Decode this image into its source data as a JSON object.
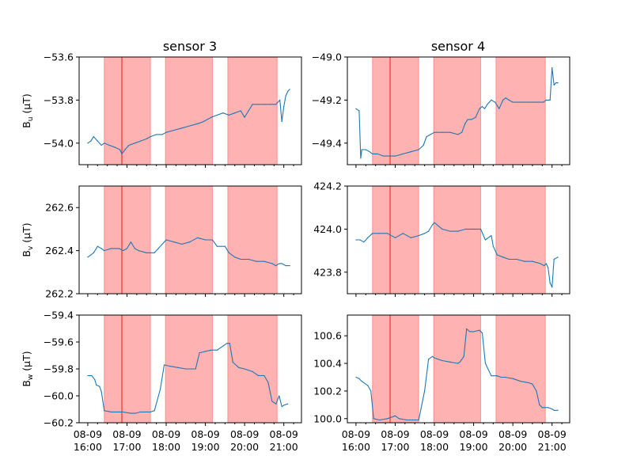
{
  "figure": {
    "columns": [
      {
        "title": "sensor 3"
      },
      {
        "title": "sensor 4"
      }
    ],
    "row_labels": [
      {
        "base": "B",
        "sub": "u",
        "unit": " (μT)"
      },
      {
        "base": "B",
        "sub": "v",
        "unit": " (μT)"
      },
      {
        "base": "B",
        "sub": "w",
        "unit": " (μT)"
      }
    ],
    "x_tick_labels": [
      {
        "t": 16.0,
        "line1": "08-09",
        "line2": "16:00"
      },
      {
        "t": 17.0,
        "line1": "08-09",
        "line2": "17:00"
      },
      {
        "t": 18.0,
        "line1": "08-09",
        "line2": "18:00"
      },
      {
        "t": 19.0,
        "line1": "08-09",
        "line2": "19:00"
      },
      {
        "t": 20.0,
        "line1": "08-09",
        "line2": "20:00"
      },
      {
        "t": 21.0,
        "line1": "08-09",
        "line2": "21:00"
      }
    ],
    "colors": {
      "series": "#1f77b4",
      "shade": "#ff0000",
      "marker_line": "#ff0000"
    }
  },
  "chart_data": [
    {
      "type": "line",
      "column": 0,
      "row": 0,
      "title": "sensor 3",
      "ylabel": "B_u (μT)",
      "xlim": [
        15.78,
        21.45
      ],
      "ylim": [
        -54.1,
        -53.6
      ],
      "yticks": [
        {
          "v": -54.0,
          "label": "−54.0"
        },
        {
          "v": -53.8,
          "label": "−53.8"
        },
        {
          "v": -53.6,
          "label": "−53.6"
        }
      ],
      "x_unit": "hours (08-09)",
      "shaded_intervals": [
        [
          16.42,
          17.6
        ],
        [
          17.98,
          19.18
        ],
        [
          19.57,
          20.83
        ]
      ],
      "marker_line": 16.87,
      "series": [
        {
          "x": [
            16.0,
            16.08,
            16.15,
            16.25,
            16.35,
            16.42,
            16.55,
            16.7,
            16.82,
            16.87,
            16.95,
            17.05,
            17.2,
            17.35,
            17.5,
            17.6,
            17.75,
            17.9,
            18.0,
            18.2,
            18.4,
            18.6,
            18.8,
            18.95,
            19.05,
            19.15,
            19.3,
            19.45,
            19.6,
            19.75,
            19.9,
            20.0,
            20.1,
            20.2,
            20.35,
            20.5,
            20.65,
            20.8,
            20.9,
            20.95,
            21.0,
            21.05,
            21.1,
            21.15
          ],
          "y": [
            -54.0,
            -53.99,
            -53.97,
            -53.99,
            -54.01,
            -54.0,
            -54.01,
            -54.02,
            -54.03,
            -54.05,
            -54.03,
            -54.01,
            -54.0,
            -53.99,
            -53.98,
            -53.97,
            -53.96,
            -53.96,
            -53.95,
            -53.94,
            -53.93,
            -53.92,
            -53.91,
            -53.9,
            -53.89,
            -53.88,
            -53.87,
            -53.86,
            -53.87,
            -53.86,
            -53.85,
            -53.88,
            -53.85,
            -53.82,
            -53.82,
            -53.82,
            -53.82,
            -53.82,
            -53.8,
            -53.9,
            -53.83,
            -53.78,
            -53.76,
            -53.75
          ]
        }
      ]
    },
    {
      "type": "line",
      "column": 1,
      "row": 0,
      "title": "sensor 4",
      "ylabel": "",
      "xlim": [
        15.78,
        21.45
      ],
      "ylim": [
        -49.5,
        -49.0
      ],
      "yticks": [
        {
          "v": -49.4,
          "label": "−49.4"
        },
        {
          "v": -49.2,
          "label": "−49.2"
        },
        {
          "v": -49.0,
          "label": "−49.0"
        }
      ],
      "x_unit": "hours (08-09)",
      "shaded_intervals": [
        [
          16.42,
          17.6
        ],
        [
          17.98,
          19.18
        ],
        [
          19.57,
          20.83
        ]
      ],
      "marker_line": 16.87,
      "series": [
        {
          "x": [
            16.0,
            16.08,
            16.12,
            16.15,
            16.25,
            16.35,
            16.42,
            16.55,
            16.7,
            16.87,
            17.0,
            17.2,
            17.4,
            17.6,
            17.72,
            17.8,
            17.9,
            18.0,
            18.2,
            18.4,
            18.6,
            18.7,
            18.78,
            18.85,
            18.95,
            19.05,
            19.15,
            19.22,
            19.28,
            19.35,
            19.45,
            19.55,
            19.65,
            19.75,
            19.82,
            19.9,
            20.0,
            20.2,
            20.4,
            20.6,
            20.78,
            20.85,
            20.95,
            21.0,
            21.05,
            21.1,
            21.15
          ],
          "y": [
            -49.24,
            -49.25,
            -49.47,
            -49.43,
            -49.43,
            -49.44,
            -49.45,
            -49.45,
            -49.46,
            -49.46,
            -49.46,
            -49.45,
            -49.44,
            -49.43,
            -49.41,
            -49.37,
            -49.36,
            -49.35,
            -49.35,
            -49.35,
            -49.36,
            -49.35,
            -49.31,
            -49.29,
            -49.29,
            -49.28,
            -49.24,
            -49.23,
            -49.24,
            -49.22,
            -49.2,
            -49.21,
            -49.24,
            -49.2,
            -49.19,
            -49.2,
            -49.21,
            -49.21,
            -49.21,
            -49.21,
            -49.21,
            -49.2,
            -49.2,
            -49.05,
            -49.13,
            -49.12,
            -49.12
          ]
        }
      ]
    },
    {
      "type": "line",
      "column": 0,
      "row": 1,
      "title": "",
      "ylabel": "B_v (μT)",
      "xlim": [
        15.78,
        21.45
      ],
      "ylim": [
        262.2,
        262.7
      ],
      "yticks": [
        {
          "v": 262.2,
          "label": "262.2"
        },
        {
          "v": 262.4,
          "label": "262.4"
        },
        {
          "v": 262.6,
          "label": "262.6"
        }
      ],
      "x_unit": "hours (08-09)",
      "shaded_intervals": [
        [
          16.42,
          17.6
        ],
        [
          17.98,
          19.18
        ],
        [
          19.57,
          20.83
        ]
      ],
      "marker_line": 16.87,
      "series": [
        {
          "x": [
            16.0,
            16.08,
            16.15,
            16.25,
            16.35,
            16.42,
            16.6,
            16.8,
            16.9,
            17.0,
            17.1,
            17.2,
            17.3,
            17.5,
            17.6,
            17.7,
            17.8,
            17.9,
            18.0,
            18.2,
            18.4,
            18.6,
            18.8,
            19.0,
            19.18,
            19.3,
            19.5,
            19.6,
            19.75,
            19.9,
            20.1,
            20.3,
            20.5,
            20.7,
            20.8,
            20.88,
            20.95,
            21.05,
            21.15
          ],
          "y": [
            262.37,
            262.38,
            262.39,
            262.42,
            262.41,
            262.4,
            262.41,
            262.41,
            262.4,
            262.41,
            262.44,
            262.41,
            262.4,
            262.39,
            262.39,
            262.39,
            262.41,
            262.43,
            262.45,
            262.44,
            262.43,
            262.44,
            262.46,
            262.45,
            262.45,
            262.42,
            262.42,
            262.39,
            262.37,
            262.36,
            262.36,
            262.35,
            262.35,
            262.34,
            262.33,
            262.34,
            262.34,
            262.33,
            262.33
          ]
        }
      ]
    },
    {
      "type": "line",
      "column": 1,
      "row": 1,
      "title": "",
      "ylabel": "",
      "xlim": [
        15.78,
        21.45
      ],
      "ylim": [
        423.7,
        424.2
      ],
      "yticks": [
        {
          "v": 423.8,
          "label": "423.8"
        },
        {
          "v": 424.0,
          "label": "424.0"
        },
        {
          "v": 424.2,
          "label": "424.2"
        }
      ],
      "x_unit": "hours (08-09)",
      "shaded_intervals": [
        [
          16.42,
          17.6
        ],
        [
          17.98,
          19.18
        ],
        [
          19.57,
          20.83
        ]
      ],
      "marker_line": 16.87,
      "series": [
        {
          "x": [
            16.0,
            16.1,
            16.2,
            16.3,
            16.42,
            16.6,
            16.8,
            17.0,
            17.2,
            17.4,
            17.6,
            17.75,
            17.85,
            17.95,
            18.0,
            18.2,
            18.4,
            18.6,
            18.8,
            19.0,
            19.18,
            19.3,
            19.45,
            19.5,
            19.6,
            19.75,
            19.9,
            20.1,
            20.3,
            20.5,
            20.7,
            20.8,
            20.85,
            20.9,
            20.95,
            21.0,
            21.05,
            21.15
          ],
          "y": [
            423.95,
            423.95,
            423.94,
            423.96,
            423.98,
            423.98,
            423.98,
            423.96,
            423.98,
            423.96,
            423.97,
            423.98,
            423.99,
            424.02,
            424.03,
            424.0,
            423.99,
            423.99,
            424.0,
            424.0,
            424.0,
            423.95,
            423.97,
            423.92,
            423.88,
            423.87,
            423.86,
            423.86,
            423.85,
            423.85,
            423.84,
            423.83,
            423.84,
            423.82,
            423.75,
            423.73,
            423.86,
            423.87
          ]
        }
      ]
    },
    {
      "type": "line",
      "column": 0,
      "row": 2,
      "title": "",
      "ylabel": "B_w (μT)",
      "xlim": [
        15.78,
        21.45
      ],
      "ylim": [
        -60.2,
        -59.4
      ],
      "yticks": [
        {
          "v": -60.2,
          "label": "−60.2"
        },
        {
          "v": -60.0,
          "label": "−60.0"
        },
        {
          "v": -59.8,
          "label": "−59.8"
        },
        {
          "v": -59.6,
          "label": "−59.6"
        },
        {
          "v": -59.4,
          "label": "−59.4"
        }
      ],
      "x_unit": "hours (08-09)",
      "shaded_intervals": [
        [
          16.42,
          17.6
        ],
        [
          17.98,
          19.18
        ],
        [
          19.57,
          20.83
        ]
      ],
      "marker_line": 16.87,
      "series": [
        {
          "x": [
            16.0,
            16.1,
            16.18,
            16.22,
            16.3,
            16.35,
            16.42,
            16.6,
            16.8,
            16.9,
            17.1,
            17.2,
            17.35,
            17.5,
            17.6,
            17.7,
            17.85,
            17.95,
            18.1,
            18.3,
            18.5,
            18.65,
            18.75,
            18.85,
            19.0,
            19.15,
            19.3,
            19.45,
            19.55,
            19.62,
            19.7,
            19.85,
            20.0,
            20.2,
            20.35,
            20.5,
            20.6,
            20.7,
            20.8,
            20.88,
            20.95,
            21.0,
            21.1
          ],
          "y": [
            -59.85,
            -59.85,
            -59.88,
            -59.92,
            -59.93,
            -59.97,
            -60.11,
            -60.12,
            -60.12,
            -60.12,
            -60.13,
            -60.13,
            -60.12,
            -60.12,
            -60.12,
            -60.11,
            -59.95,
            -59.77,
            -59.78,
            -59.79,
            -59.8,
            -59.8,
            -59.8,
            -59.68,
            -59.67,
            -59.66,
            -59.66,
            -59.63,
            -59.61,
            -59.61,
            -59.75,
            -59.79,
            -59.8,
            -59.82,
            -59.85,
            -59.85,
            -59.9,
            -60.04,
            -60.06,
            -60.0,
            -60.08,
            -60.07,
            -60.06
          ]
        }
      ]
    },
    {
      "type": "line",
      "column": 1,
      "row": 2,
      "title": "",
      "ylabel": "",
      "xlim": [
        15.78,
        21.45
      ],
      "ylim": [
        99.97,
        100.75
      ],
      "yticks": [
        {
          "v": 100.0,
          "label": "100.0"
        },
        {
          "v": 100.2,
          "label": "100.2"
        },
        {
          "v": 100.4,
          "label": "100.4"
        },
        {
          "v": 100.6,
          "label": "100.6"
        }
      ],
      "x_unit": "hours (08-09)",
      "shaded_intervals": [
        [
          16.42,
          17.6
        ],
        [
          17.98,
          19.18
        ],
        [
          19.57,
          20.83
        ]
      ],
      "marker_line": 16.87,
      "series": [
        {
          "x": [
            16.0,
            16.08,
            16.15,
            16.2,
            16.3,
            16.38,
            16.45,
            16.6,
            16.8,
            17.0,
            17.1,
            17.3,
            17.5,
            17.6,
            17.75,
            17.85,
            17.95,
            18.0,
            18.2,
            18.4,
            18.6,
            18.65,
            18.75,
            18.82,
            18.9,
            19.0,
            19.15,
            19.22,
            19.3,
            19.45,
            19.6,
            19.7,
            19.8,
            20.0,
            20.2,
            20.4,
            20.5,
            20.6,
            20.68,
            20.75,
            20.8,
            20.9,
            21.0,
            21.05,
            21.15
          ],
          "y": [
            100.3,
            100.29,
            100.27,
            100.26,
            100.24,
            100.2,
            100.0,
            99.99,
            100.0,
            100.02,
            100.0,
            99.99,
            99.99,
            99.99,
            100.2,
            100.43,
            100.45,
            100.44,
            100.42,
            100.41,
            100.4,
            100.41,
            100.45,
            100.65,
            100.63,
            100.63,
            100.64,
            100.62,
            100.4,
            100.31,
            100.31,
            100.3,
            100.3,
            100.29,
            100.27,
            100.26,
            100.25,
            100.2,
            100.1,
            100.08,
            100.08,
            100.08,
            100.07,
            100.06,
            100.06
          ]
        }
      ]
    }
  ]
}
